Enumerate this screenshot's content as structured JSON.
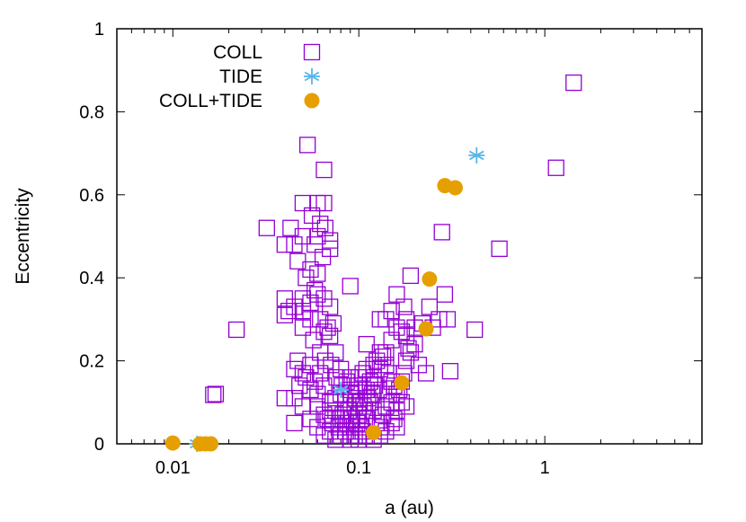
{
  "chart_data": {
    "type": "scatter",
    "title": "",
    "xlabel": "a (au)",
    "ylabel": "Eccentricity",
    "xscale": "log",
    "xlim": [
      0.005,
      7
    ],
    "ylim": [
      0,
      1
    ],
    "x_ticks": [
      {
        "value": 0.01,
        "label": "0.01"
      },
      {
        "value": 0.1,
        "label": "0.1"
      },
      {
        "value": 1,
        "label": "1"
      }
    ],
    "y_ticks": [
      {
        "value": 0,
        "label": "0"
      },
      {
        "value": 0.2,
        "label": "0.2"
      },
      {
        "value": 0.4,
        "label": "0.4"
      },
      {
        "value": 0.6,
        "label": "0.6"
      },
      {
        "value": 0.8,
        "label": "0.8"
      },
      {
        "value": 1,
        "label": "1"
      }
    ],
    "grid": false,
    "legend_position": "top-left",
    "series": [
      {
        "name": "COLL",
        "marker": "open-square",
        "color": "#9400d3",
        "points": [
          [
            1.43,
            0.87
          ],
          [
            1.15,
            0.665
          ],
          [
            0.57,
            0.47
          ],
          [
            0.42,
            0.275
          ],
          [
            0.065,
            0.66
          ],
          [
            0.053,
            0.72
          ],
          [
            0.032,
            0.52
          ],
          [
            0.022,
            0.275
          ],
          [
            0.017,
            0.12
          ],
          [
            0.0165,
            0.118
          ],
          [
            0.28,
            0.51
          ],
          [
            0.19,
            0.405
          ],
          [
            0.16,
            0.36
          ],
          [
            0.29,
            0.36
          ],
          [
            0.3,
            0.3
          ],
          [
            0.24,
            0.33
          ],
          [
            0.31,
            0.175
          ],
          [
            0.23,
            0.17
          ],
          [
            0.2,
            0.28
          ],
          [
            0.13,
            0.3
          ],
          [
            0.11,
            0.24
          ],
          [
            0.09,
            0.38
          ],
          [
            0.05,
            0.58
          ],
          [
            0.06,
            0.58
          ],
          [
            0.065,
            0.58
          ],
          [
            0.043,
            0.52
          ],
          [
            0.05,
            0.5
          ],
          [
            0.04,
            0.48
          ],
          [
            0.045,
            0.48
          ],
          [
            0.047,
            0.44
          ],
          [
            0.06,
            0.5
          ],
          [
            0.064,
            0.45
          ],
          [
            0.07,
            0.47
          ],
          [
            0.055,
            0.42
          ],
          [
            0.052,
            0.4
          ],
          [
            0.06,
            0.41
          ],
          [
            0.058,
            0.37
          ],
          [
            0.05,
            0.35
          ],
          [
            0.045,
            0.33
          ],
          [
            0.04,
            0.35
          ],
          [
            0.042,
            0.32
          ],
          [
            0.04,
            0.31
          ],
          [
            0.055,
            0.3
          ],
          [
            0.05,
            0.28
          ],
          [
            0.065,
            0.27
          ],
          [
            0.07,
            0.26
          ],
          [
            0.057,
            0.25
          ],
          [
            0.062,
            0.22
          ],
          [
            0.075,
            0.22
          ],
          [
            0.08,
            0.18
          ],
          [
            0.09,
            0.16
          ],
          [
            0.1,
            0.14
          ],
          [
            0.11,
            0.13
          ],
          [
            0.12,
            0.16
          ],
          [
            0.13,
            0.18
          ],
          [
            0.14,
            0.22
          ],
          [
            0.15,
            0.25
          ],
          [
            0.16,
            0.28
          ],
          [
            0.17,
            0.27
          ],
          [
            0.18,
            0.26
          ],
          [
            0.19,
            0.22
          ],
          [
            0.2,
            0.24
          ],
          [
            0.21,
            0.19
          ],
          [
            0.22,
            0.29
          ],
          [
            0.25,
            0.28
          ],
          [
            0.27,
            0.3
          ],
          [
            0.14,
            0.3
          ],
          [
            0.15,
            0.32
          ],
          [
            0.175,
            0.33
          ],
          [
            0.18,
            0.3
          ],
          [
            0.045,
            0.18
          ],
          [
            0.05,
            0.17
          ],
          [
            0.055,
            0.19
          ],
          [
            0.045,
            0.11
          ],
          [
            0.04,
            0.11
          ],
          [
            0.05,
            0.09
          ],
          [
            0.045,
            0.05
          ],
          [
            0.055,
            0.06
          ],
          [
            0.06,
            0.12
          ],
          [
            0.065,
            0.14
          ],
          [
            0.07,
            0.1
          ],
          [
            0.075,
            0.08
          ],
          [
            0.08,
            0.06
          ],
          [
            0.085,
            0.05
          ],
          [
            0.09,
            0.04
          ],
          [
            0.095,
            0.09
          ],
          [
            0.1,
            0.07
          ],
          [
            0.105,
            0.03
          ],
          [
            0.11,
            0.06
          ],
          [
            0.115,
            0.1
          ],
          [
            0.12,
            0.08
          ],
          [
            0.125,
            0.05
          ],
          [
            0.13,
            0.04
          ],
          [
            0.135,
            0.07
          ],
          [
            0.14,
            0.09
          ],
          [
            0.145,
            0.12
          ],
          [
            0.15,
            0.1
          ],
          [
            0.155,
            0.06
          ],
          [
            0.16,
            0.08
          ],
          [
            0.17,
            0.1
          ],
          [
            0.18,
            0.09
          ],
          [
            0.065,
            0.02
          ],
          [
            0.07,
            0.03
          ],
          [
            0.075,
            0.01
          ],
          [
            0.08,
            0.02
          ],
          [
            0.085,
            0.03
          ],
          [
            0.09,
            0.01
          ],
          [
            0.095,
            0.02
          ],
          [
            0.1,
            0.01
          ],
          [
            0.11,
            0.02
          ],
          [
            0.12,
            0.01
          ],
          [
            0.13,
            0.02
          ],
          [
            0.06,
            0.04
          ],
          [
            0.068,
            0.06
          ],
          [
            0.072,
            0.05
          ],
          [
            0.078,
            0.04
          ],
          [
            0.082,
            0.07
          ],
          [
            0.088,
            0.08
          ],
          [
            0.092,
            0.06
          ],
          [
            0.098,
            0.05
          ],
          [
            0.102,
            0.04
          ],
          [
            0.108,
            0.08
          ],
          [
            0.112,
            0.11
          ],
          [
            0.118,
            0.12
          ],
          [
            0.122,
            0.14
          ],
          [
            0.128,
            0.13
          ],
          [
            0.058,
            0.15
          ],
          [
            0.062,
            0.17
          ],
          [
            0.066,
            0.2
          ],
          [
            0.071,
            0.19
          ],
          [
            0.076,
            0.16
          ],
          [
            0.081,
            0.14
          ],
          [
            0.086,
            0.15
          ],
          [
            0.091,
            0.12
          ],
          [
            0.096,
            0.11
          ],
          [
            0.101,
            0.1
          ],
          [
            0.106,
            0.09
          ],
          [
            0.055,
            0.13
          ],
          [
            0.052,
            0.16
          ],
          [
            0.048,
            0.14
          ],
          [
            0.047,
            0.2
          ],
          [
            0.06,
            0.09
          ],
          [
            0.065,
            0.07
          ],
          [
            0.07,
            0.08
          ],
          [
            0.075,
            0.11
          ],
          [
            0.08,
            0.12
          ],
          [
            0.085,
            0.1
          ],
          [
            0.09,
            0.13
          ],
          [
            0.095,
            0.14
          ],
          [
            0.1,
            0.16
          ],
          [
            0.105,
            0.17
          ],
          [
            0.11,
            0.18
          ],
          [
            0.115,
            0.15
          ],
          [
            0.12,
            0.19
          ],
          [
            0.125,
            0.2
          ],
          [
            0.13,
            0.22
          ],
          [
            0.135,
            0.21
          ],
          [
            0.14,
            0.19
          ],
          [
            0.145,
            0.17
          ],
          [
            0.15,
            0.15
          ],
          [
            0.155,
            0.14
          ],
          [
            0.16,
            0.12
          ],
          [
            0.165,
            0.13
          ],
          [
            0.17,
            0.15
          ],
          [
            0.175,
            0.17
          ],
          [
            0.18,
            0.2
          ],
          [
            0.185,
            0.23
          ],
          [
            0.09,
            0.03
          ],
          [
            0.1,
            0.02
          ],
          [
            0.14,
            0.03
          ],
          [
            0.15,
            0.05
          ],
          [
            0.16,
            0.04
          ],
          [
            0.058,
            0.48
          ],
          [
            0.062,
            0.53
          ],
          [
            0.066,
            0.52
          ],
          [
            0.07,
            0.49
          ],
          [
            0.056,
            0.55
          ],
          [
            0.05,
            0.32
          ],
          [
            0.055,
            0.34
          ],
          [
            0.06,
            0.36
          ],
          [
            0.065,
            0.35
          ],
          [
            0.07,
            0.33
          ],
          [
            0.062,
            0.3
          ],
          [
            0.068,
            0.28
          ],
          [
            0.073,
            0.29
          ]
        ]
      },
      {
        "name": "TIDE",
        "marker": "star",
        "color": "#56b4e9",
        "points": [
          [
            0.43,
            0.695
          ],
          [
            0.08,
            0.13
          ],
          [
            0.0135,
            0.0
          ]
        ]
      },
      {
        "name": "COLL+TIDE",
        "marker": "filled-circle",
        "color": "#e69f00",
        "points": [
          [
            0.29,
            0.622
          ],
          [
            0.33,
            0.617
          ],
          [
            0.24,
            0.397
          ],
          [
            0.23,
            0.277
          ],
          [
            0.17,
            0.147
          ],
          [
            0.12,
            0.027
          ],
          [
            0.01,
            0.002
          ],
          [
            0.014,
            0.0
          ],
          [
            0.015,
            0.0
          ],
          [
            0.016,
            0.0
          ]
        ]
      }
    ]
  }
}
